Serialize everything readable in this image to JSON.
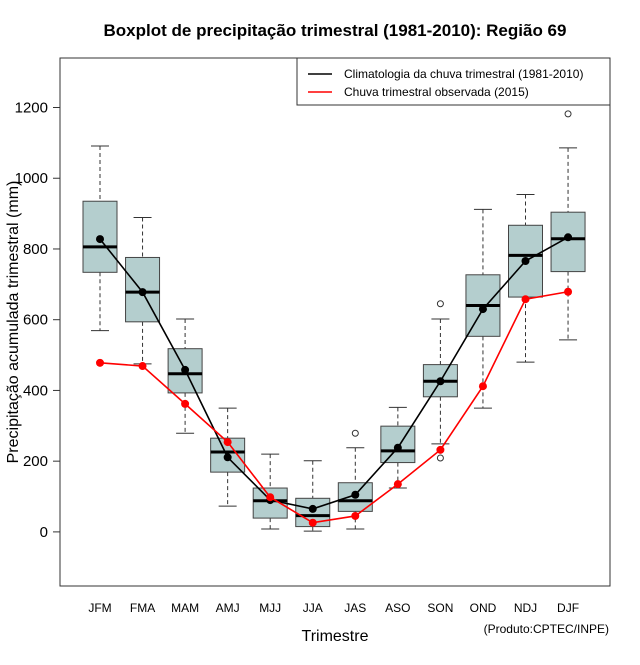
{
  "chart_data": {
    "type": "boxplot",
    "title": "Boxplot de precipitação trimestral (1981-2010): Região 69",
    "xlabel": "Trimestre",
    "ylabel": "Precipitação acumulada trimestral (mm)",
    "credit": "(Produto:CPTEC/INPE)",
    "ylim": [
      -153,
      1340
    ],
    "yticks": [
      0,
      200,
      400,
      600,
      800,
      1000,
      1200
    ],
    "categories": [
      "JFM",
      "FMA",
      "MAM",
      "AMJ",
      "MJJ",
      "JJA",
      "JAS",
      "ASO",
      "SON",
      "OND",
      "NDJ",
      "DJF"
    ],
    "boxes": [
      {
        "low": 569,
        "q1": 734,
        "median": 806,
        "q3": 935,
        "high": 1091,
        "outliers": []
      },
      {
        "low": 475,
        "q1": 594,
        "median": 678,
        "q3": 776,
        "high": 889,
        "outliers": []
      },
      {
        "low": 279,
        "q1": 393,
        "median": 447,
        "q3": 518,
        "high": 602,
        "outliers": []
      },
      {
        "low": 73,
        "q1": 169,
        "median": 226,
        "q3": 265,
        "high": 350,
        "outliers": []
      },
      {
        "low": 8,
        "q1": 39,
        "median": 88,
        "q3": 124,
        "high": 220,
        "outliers": []
      },
      {
        "low": 2,
        "q1": 15,
        "median": 46,
        "q3": 95,
        "high": 201,
        "outliers": []
      },
      {
        "low": 8,
        "q1": 58,
        "median": 88,
        "q3": 139,
        "high": 238,
        "outliers": [
          279
        ]
      },
      {
        "low": 124,
        "q1": 196,
        "median": 229,
        "q3": 299,
        "high": 352,
        "outliers": []
      },
      {
        "low": 249,
        "q1": 382,
        "median": 426,
        "q3": 473,
        "high": 602,
        "outliers": [
          645,
          209
        ]
      },
      {
        "low": 350,
        "q1": 553,
        "median": 640,
        "q3": 727,
        "high": 912,
        "outliers": []
      },
      {
        "low": 480,
        "q1": 664,
        "median": 782,
        "q3": 867,
        "high": 954,
        "outliers": []
      },
      {
        "low": 543,
        "q1": 736,
        "median": 829,
        "q3": 904,
        "high": 1086,
        "outliers": [
          1182
        ]
      }
    ],
    "series": [
      {
        "name": "Climatologia da chuva trimestral (1981-2010)",
        "color": "#000000",
        "values": [
          828,
          678,
          458,
          211,
          90,
          65,
          105,
          238,
          426,
          630,
          766,
          833
        ]
      },
      {
        "name": "Chuva trimestral observada (2015)",
        "color": "#ff0000",
        "values": [
          478,
          469,
          362,
          254,
          98,
          26,
          45,
          135,
          232,
          412,
          658,
          679
        ]
      }
    ],
    "box_fill": "#b4cece",
    "legend": "top-right"
  }
}
